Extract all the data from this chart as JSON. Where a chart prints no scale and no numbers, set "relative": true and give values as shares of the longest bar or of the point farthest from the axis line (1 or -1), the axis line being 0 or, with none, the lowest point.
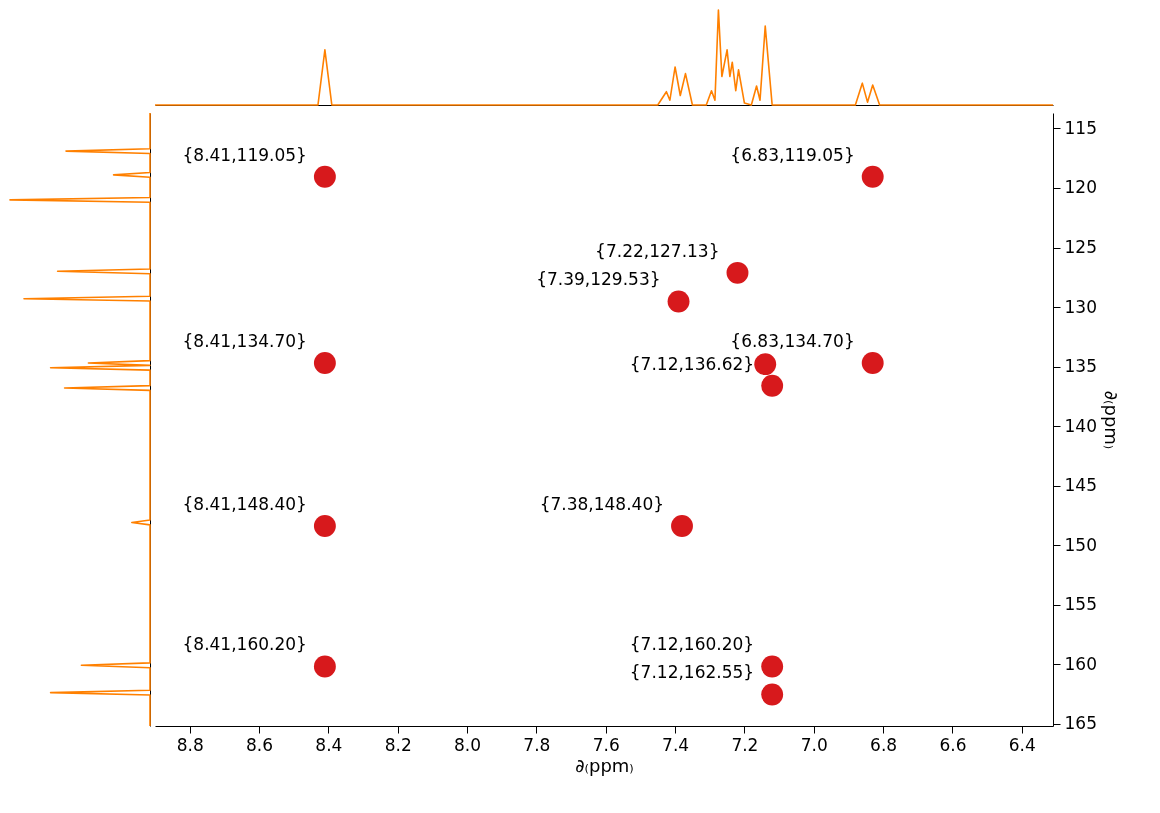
{
  "chart_data": [
    {
      "type": "line",
      "relative": true,
      "color": "#ff8000",
      "tick_labels": false,
      "xlim": [
        8.9,
        6.31
      ],
      "x": [
        8.9,
        8.43,
        8.41,
        8.39,
        7.45,
        7.425,
        7.415,
        7.4,
        7.385,
        7.37,
        7.35,
        7.31,
        7.295,
        7.285,
        7.275,
        7.265,
        7.25,
        7.242,
        7.235,
        7.225,
        7.217,
        7.2,
        7.18,
        7.165,
        7.155,
        7.14,
        7.12,
        6.88,
        6.86,
        6.845,
        6.83,
        6.81,
        6.31
      ],
      "values": [
        0,
        0,
        0.58,
        0,
        0,
        0.14,
        0.05,
        0.4,
        0.1,
        0.33,
        0,
        0,
        0.15,
        0.05,
        1.0,
        0.3,
        0.58,
        0.3,
        0.45,
        0.15,
        0.37,
        0.02,
        0,
        0.2,
        0.05,
        0.83,
        0,
        0,
        0.23,
        0.03,
        0.21,
        0,
        0
      ]
    },
    {
      "type": "line",
      "relative": true,
      "orientation": "horizontal",
      "color": "#ff8000",
      "tick_labels": false,
      "ylim": [
        165.2,
        113.7
      ],
      "x": [
        113.7,
        116.7,
        116.9,
        117.1,
        118.7,
        118.9,
        119.1,
        120.8,
        121.0,
        121.2,
        126.8,
        127.0,
        127.2,
        129.1,
        129.3,
        129.5,
        134.5,
        134.7,
        134.9,
        135.1,
        135.3,
        136.6,
        136.8,
        137.0,
        147.9,
        148.1,
        148.3,
        159.9,
        160.1,
        160.3,
        162.2,
        162.4,
        162.6,
        165.2
      ],
      "values": [
        0,
        0,
        -0.6,
        0,
        0,
        -0.26,
        0,
        0,
        -1.0,
        0,
        0,
        -0.66,
        0,
        0,
        -0.9,
        0,
        0,
        -0.44,
        0,
        -0.71,
        0,
        0,
        -0.61,
        0,
        0,
        -0.13,
        0,
        0,
        -0.49,
        0,
        0,
        -0.71,
        0,
        0
      ]
    },
    {
      "type": "scatter",
      "color": "#d7191c",
      "marker": "circle",
      "grid": false,
      "xlabel": "∂₍ppm₎",
      "ylabel": "∂₍ppm₎",
      "xlim": [
        8.9,
        6.31
      ],
      "xticks": [
        8.8,
        8.6,
        8.4,
        8.2,
        {
          "value": 8,
          "label": "8.0"
        },
        7.8,
        7.6,
        7.4,
        7.2,
        {
          "value": 7,
          "label": "7.0"
        },
        6.8,
        6.6,
        6.4
      ],
      "ylim": [
        165.2,
        113.7
      ],
      "yticks": [
        115,
        120,
        125,
        130,
        135,
        140,
        145,
        150,
        155,
        160,
        165
      ],
      "x": [
        8.41,
        6.83,
        7.22,
        7.39,
        8.41,
        7.12,
        7.14,
        6.83,
        8.41,
        7.38,
        8.41,
        7.12,
        7.12
      ],
      "values": [
        119.05,
        119.05,
        127.13,
        129.53,
        134.7,
        136.62,
        134.8,
        134.7,
        148.4,
        148.4,
        160.2,
        160.2,
        162.55
      ],
      "annotations": [
        {
          "text": "{8.41,119.05}",
          "x": 8.41,
          "y": 119.05
        },
        {
          "text": "{6.83,119.05}",
          "x": 6.83,
          "y": 119.05
        },
        {
          "text": "{7.22,127.13}",
          "x": 7.22,
          "y": 127.13
        },
        {
          "text": "{7.39,129.53}",
          "x": 7.39,
          "y": 129.53
        },
        {
          "text": "{8.41,134.70}",
          "x": 8.41,
          "y": 134.7
        },
        {
          "text": "{7.12,136.62}",
          "x": 7.12,
          "y": 136.62
        },
        {
          "text": "{6.83,134.70}",
          "x": 6.83,
          "y": 134.7
        },
        {
          "text": "{8.41,148.40}",
          "x": 8.41,
          "y": 148.4
        },
        {
          "text": "{7.38,148.40}",
          "x": 7.38,
          "y": 148.4
        },
        {
          "text": "{8.41,160.20}",
          "x": 8.41,
          "y": 160.2
        },
        {
          "text": "{7.12,160.20}",
          "x": 7.12,
          "y": 160.2
        },
        {
          "text": "{7.12,162.55}",
          "x": 7.12,
          "y": 162.55
        }
      ]
    }
  ]
}
